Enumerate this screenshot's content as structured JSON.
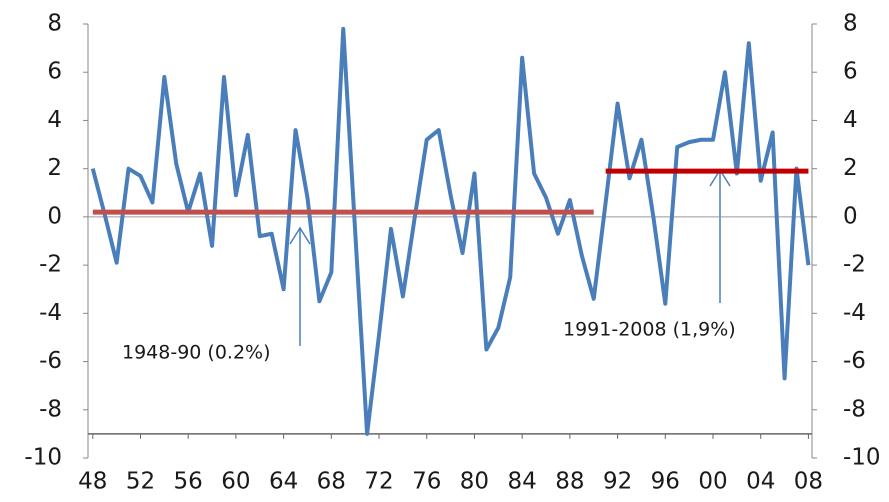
{
  "chart_data": {
    "type": "line",
    "x": [
      1948,
      1949,
      1950,
      1951,
      1952,
      1953,
      1954,
      1955,
      1956,
      1957,
      1958,
      1959,
      1960,
      1961,
      1962,
      1963,
      1964,
      1965,
      1966,
      1967,
      1968,
      1969,
      1970,
      1971,
      1972,
      1973,
      1974,
      1975,
      1976,
      1977,
      1978,
      1979,
      1980,
      1981,
      1982,
      1983,
      1984,
      1985,
      1986,
      1987,
      1988,
      1989,
      1990,
      1991,
      1992,
      1993,
      1994,
      1995,
      1996,
      1997,
      1998,
      1999,
      2000,
      2001,
      2002,
      2003,
      2004,
      2005,
      2006,
      2007,
      2008
    ],
    "series": [
      {
        "color": "#4a7ebb",
        "values": [
          2.0,
          0.1,
          -1.9,
          2.0,
          1.7,
          0.6,
          5.8,
          2.2,
          0.2,
          1.8,
          -1.2,
          5.8,
          0.9,
          3.4,
          -0.8,
          -0.7,
          -3.0,
          3.6,
          0.8,
          -3.5,
          -2.3,
          7.8,
          -0.6,
          -9.0,
          -4.9,
          -0.5,
          -3.3,
          0.0,
          3.2,
          3.6,
          0.9,
          -1.5,
          1.8,
          -5.5,
          -4.6,
          -2.5,
          6.6,
          1.8,
          0.8,
          -0.7,
          0.7,
          -1.6,
          -3.4,
          0.6,
          4.7,
          1.6,
          3.2,
          0.0,
          -3.6,
          2.9,
          3.1,
          3.2,
          3.2,
          6.0,
          1.8,
          7.2,
          1.5,
          3.5,
          -6.7,
          2.0,
          -2.0
        ]
      },
      {
        "color": "#c0504d",
        "values": [
          0.2,
          0.2,
          0.2,
          0.2,
          0.2,
          0.2,
          0.2,
          0.2,
          0.2,
          0.2,
          0.2,
          0.2,
          0.2,
          0.2,
          0.2,
          0.2,
          0.2,
          0.2,
          0.2,
          0.2,
          0.2,
          0.2,
          0.2,
          0.2,
          0.2,
          0.2,
          0.2,
          0.2,
          0.2,
          0.2,
          0.2,
          0.2,
          0.2,
          0.2,
          0.2,
          0.2,
          0.2,
          0.2,
          0.2,
          0.2,
          0.2,
          0.2,
          0.2,
          null,
          null,
          null,
          null,
          null,
          null,
          null,
          null,
          null,
          null,
          null,
          null,
          null,
          null,
          null,
          null,
          null,
          null
        ]
      },
      {
        "color": "#c00000",
        "values": [
          null,
          null,
          null,
          null,
          null,
          null,
          null,
          null,
          null,
          null,
          null,
          null,
          null,
          null,
          null,
          null,
          null,
          null,
          null,
          null,
          null,
          null,
          null,
          null,
          null,
          null,
          null,
          null,
          null,
          null,
          null,
          null,
          null,
          null,
          null,
          null,
          null,
          null,
          null,
          null,
          null,
          null,
          null,
          1.9,
          1.9,
          1.9,
          1.9,
          1.9,
          1.9,
          1.9,
          1.9,
          1.9,
          1.9,
          1.9,
          1.9,
          1.9,
          1.9,
          1.9,
          1.9,
          1.9,
          1.9
        ]
      }
    ],
    "annotations": [
      "1948-90 (0.2%)",
      "1991-2008 (1,9%)"
    ],
    "xlim": [
      1947.6,
      2008.3
    ],
    "xticks": [
      {
        "value": 1948,
        "label": "48"
      },
      {
        "value": 1952,
        "label": "52"
      },
      {
        "value": 1956,
        "label": "56"
      },
      {
        "value": 1960,
        "label": "60"
      },
      {
        "value": 1964,
        "label": "64"
      },
      {
        "value": 1968,
        "label": "68"
      },
      {
        "value": 1972,
        "label": "72"
      },
      {
        "value": 1976,
        "label": "76"
      },
      {
        "value": 1980,
        "label": "80"
      },
      {
        "value": 1984,
        "label": "84"
      },
      {
        "value": 1988,
        "label": "88"
      },
      {
        "value": 1992,
        "label": "92"
      },
      {
        "value": 1996,
        "label": "96"
      },
      {
        "value": 2000,
        "label": "00"
      },
      {
        "value": 2004,
        "label": "04"
      },
      {
        "value": 2008,
        "label": "08"
      }
    ],
    "ylim": [
      -10,
      8
    ],
    "yticks": [
      -10,
      -8,
      -6,
      -4,
      -2,
      0,
      2,
      4,
      6,
      8
    ],
    "y2lim": [
      -10,
      8
    ],
    "y2ticks": [
      -10,
      -8,
      -6,
      -4,
      -2,
      0,
      2,
      4,
      6,
      8
    ],
    "x_axis_at": -9,
    "zero_line": true
  }
}
